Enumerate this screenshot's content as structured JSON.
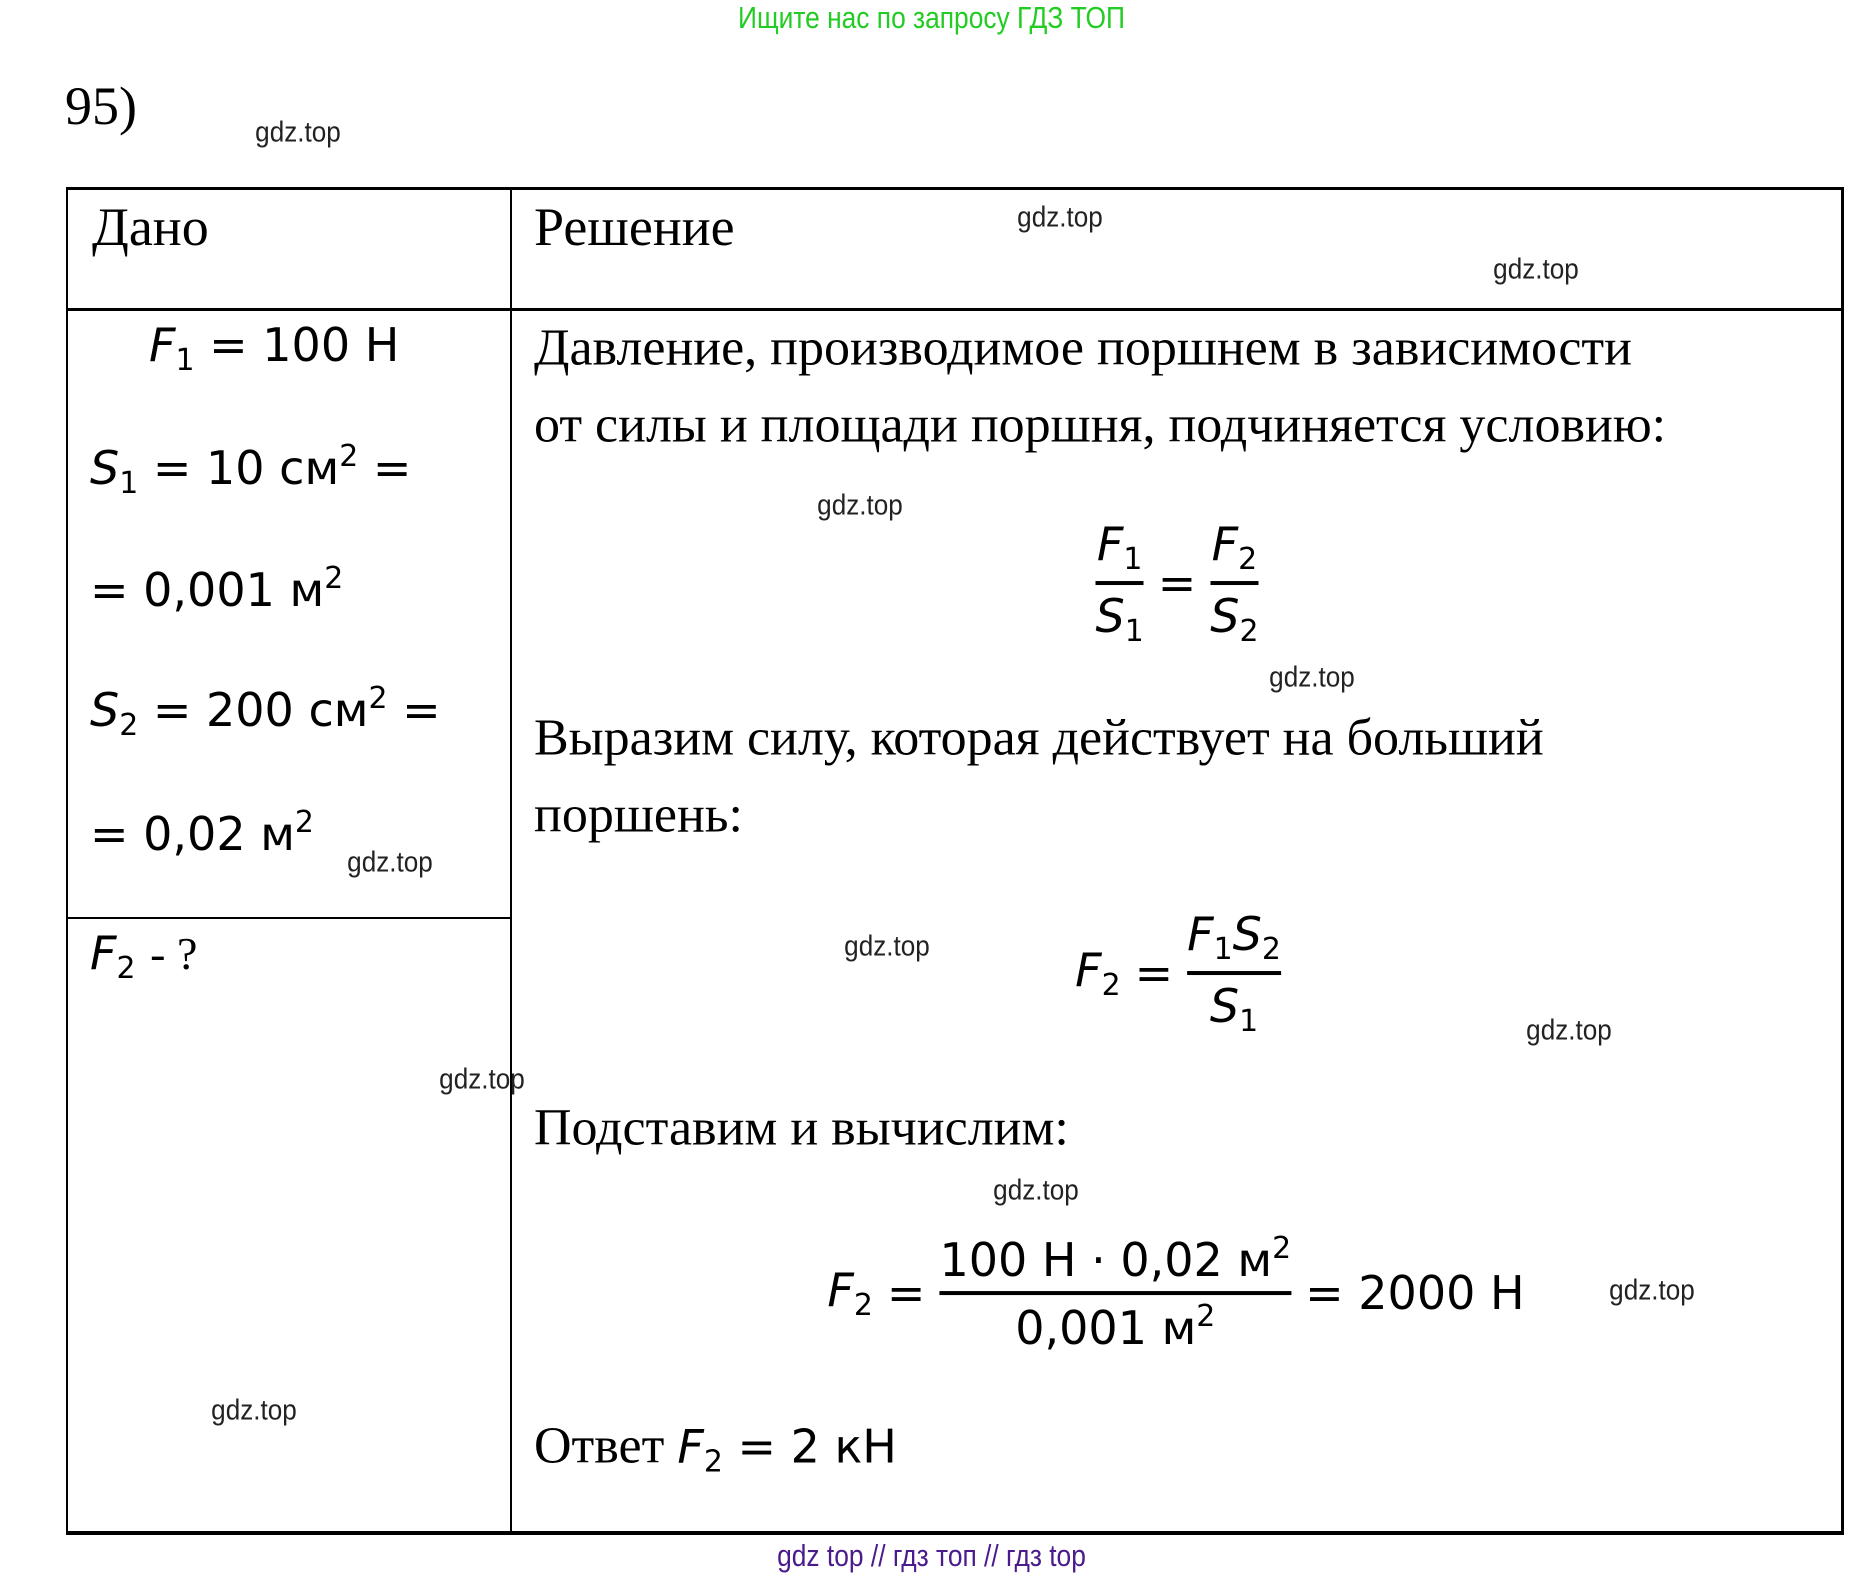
{
  "banner": "Ищите нас по запросу ГДЗ ТОП",
  "problem_number": "95)",
  "watermark": "gdz.top",
  "footer": "gdz top  //  гдз топ  //  гдз top",
  "table": {
    "given_header": "Дано",
    "solution_header": "Решение",
    "given": {
      "f1": "= 100 Н",
      "s1": "= 10 см",
      "s1_si": "= 0,001 м",
      "s2": "= 200 см",
      "s2_si": "= 0,02 м",
      "find": "- ?"
    },
    "solution": {
      "line1": "Давление, производимое поршнем в зависимости",
      "line2": "от силы и площади поршня, подчиняется условию:",
      "line3": "Выразим силу, которая действует на больший",
      "line4": "поршень:",
      "line5": "Подставим и вычислим:",
      "calc_numerator": "100 Н · 0,02 м",
      "calc_denominator": "0,001 м",
      "calc_result": "= 2000 Н",
      "answer_label": "Ответ",
      "answer_value": "= 2 кН"
    }
  }
}
